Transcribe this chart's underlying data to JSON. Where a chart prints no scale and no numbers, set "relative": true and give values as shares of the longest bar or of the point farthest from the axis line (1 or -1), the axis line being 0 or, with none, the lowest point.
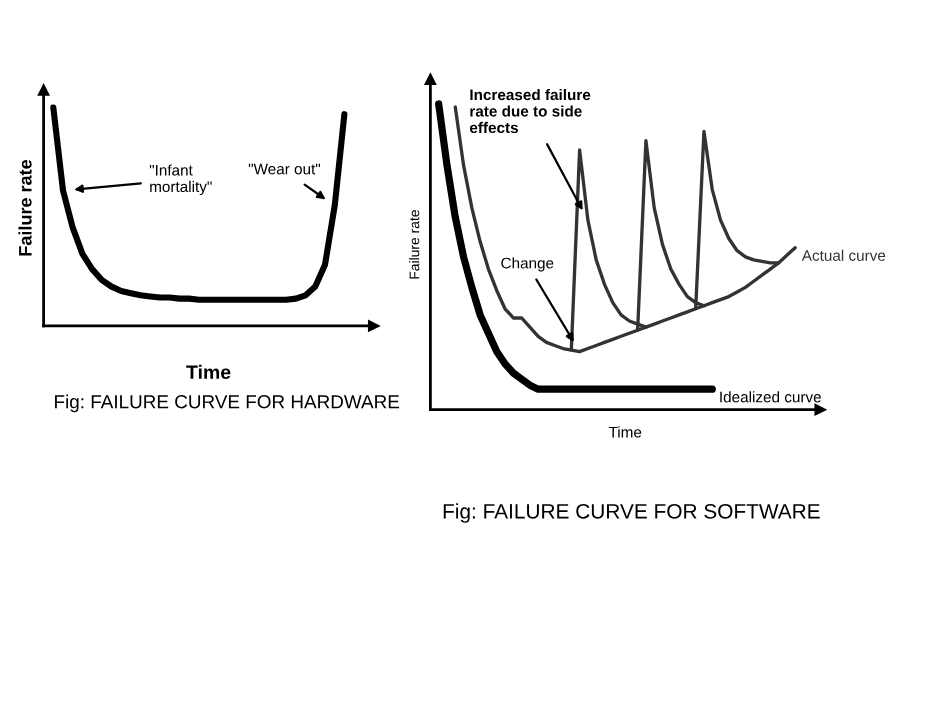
{
  "chart_data": [
    {
      "type": "line",
      "relative": true,
      "title": "Fig: FAILURE CURVE FOR HARDWARE",
      "xlabel": "Time",
      "ylabel": "Failure rate",
      "legend": false,
      "tick_labels": false,
      "marker": "none",
      "line_style": "solid",
      "categories": [
        null,
        null,
        null,
        null,
        null,
        null,
        null,
        null,
        null,
        null,
        null,
        null,
        null,
        null,
        null,
        null,
        null,
        null,
        null,
        null,
        null,
        null,
        null,
        null,
        null,
        null,
        null,
        null,
        null,
        null,
        null
      ],
      "series": [
        {
          "color": "#000000",
          "values": [
            1.0,
            0.62,
            0.45,
            0.33,
            0.26,
            0.21,
            0.18,
            0.16,
            0.15,
            0.14,
            0.135,
            0.13,
            0.13,
            0.125,
            0.125,
            0.12,
            0.12,
            0.12,
            0.12,
            0.12,
            0.12,
            0.12,
            0.12,
            0.12,
            0.12,
            0.125,
            0.14,
            0.18,
            0.28,
            0.55,
            0.97
          ]
        }
      ],
      "annotations": [
        "\"Infant\nmortality\"",
        "\"Wear out\""
      ]
    },
    {
      "type": "line",
      "relative": true,
      "title": "Fig: FAILURE CURVE FOR SOFTWARE",
      "xlabel": "Time",
      "ylabel": "Failure rate",
      "legend": false,
      "tick_labels": false,
      "marker": "none",
      "line_style": "solid",
      "categories": [
        null,
        null,
        null,
        null,
        null,
        null,
        null,
        null,
        null,
        null,
        null,
        null,
        null,
        null,
        null,
        null,
        null,
        null,
        null,
        null,
        null,
        null,
        null,
        null,
        null,
        null,
        null,
        null,
        null,
        null,
        null,
        null,
        null,
        null,
        null,
        null,
        null,
        null,
        null,
        null,
        null,
        null,
        null,
        null
      ],
      "series": [
        {
          "name": "Idealized curve",
          "color": "#000000",
          "values": [
            1.0,
            0.8,
            0.63,
            0.5,
            0.4,
            0.31,
            0.25,
            0.19,
            0.15,
            0.12,
            0.1,
            0.08,
            0.067,
            0.067,
            0.067,
            0.067,
            0.067,
            0.067,
            0.067,
            0.067,
            0.067,
            0.067,
            0.067,
            0.067,
            0.067,
            0.067,
            0.067,
            0.067,
            0.067,
            0.067,
            0.067,
            0.067,
            0.067,
            0.067,
            null,
            null,
            null,
            null,
            null,
            null,
            null,
            null,
            null,
            null
          ]
        },
        {
          "name": "Actual curve",
          "color": "#333333",
          "values": [
            null,
            null,
            0.99,
            0.8,
            0.66,
            0.55,
            0.46,
            0.39,
            0.33,
            0.3,
            0.3,
            0.27,
            0.24,
            0.22,
            0.21,
            0.2,
            0.195,
            0.19,
            0.2,
            0.21,
            0.22,
            0.23,
            0.24,
            0.25,
            0.26,
            0.27,
            0.28,
            0.29,
            0.3,
            0.31,
            0.32,
            0.33,
            0.34,
            0.35,
            0.36,
            0.37,
            0.385,
            0.4,
            0.42,
            0.44,
            0.46,
            0.48,
            0.505,
            0.53
          ]
        },
        {
          "color": "#333333",
          "values": [
            null,
            null,
            null,
            null,
            null,
            null,
            null,
            null,
            null,
            null,
            null,
            null,
            null,
            null,
            null,
            null,
            0.195,
            0.85,
            0.62,
            0.49,
            0.41,
            0.35,
            0.31,
            0.29,
            0.28,
            0.27,
            null,
            null,
            null,
            null,
            null,
            null,
            null,
            null,
            null,
            null,
            null,
            null,
            null,
            null,
            null,
            null,
            null,
            null
          ]
        },
        {
          "color": "#333333",
          "values": [
            null,
            null,
            null,
            null,
            null,
            null,
            null,
            null,
            null,
            null,
            null,
            null,
            null,
            null,
            null,
            null,
            null,
            null,
            null,
            null,
            null,
            null,
            null,
            null,
            0.26,
            0.88,
            0.66,
            0.54,
            0.46,
            0.41,
            0.37,
            0.35,
            0.34,
            null,
            null,
            null,
            null,
            null,
            null,
            null,
            null,
            null,
            null,
            null
          ]
        },
        {
          "color": "#333333",
          "values": [
            null,
            null,
            null,
            null,
            null,
            null,
            null,
            null,
            null,
            null,
            null,
            null,
            null,
            null,
            null,
            null,
            null,
            null,
            null,
            null,
            null,
            null,
            null,
            null,
            null,
            null,
            null,
            null,
            null,
            null,
            null,
            0.33,
            0.91,
            0.72,
            0.62,
            0.56,
            0.52,
            0.5,
            0.49,
            0.485,
            0.48,
            0.48,
            null,
            null
          ]
        }
      ],
      "annotations": [
        "Increased failure\nrate due to side\neffects",
        "Change"
      ]
    }
  ]
}
